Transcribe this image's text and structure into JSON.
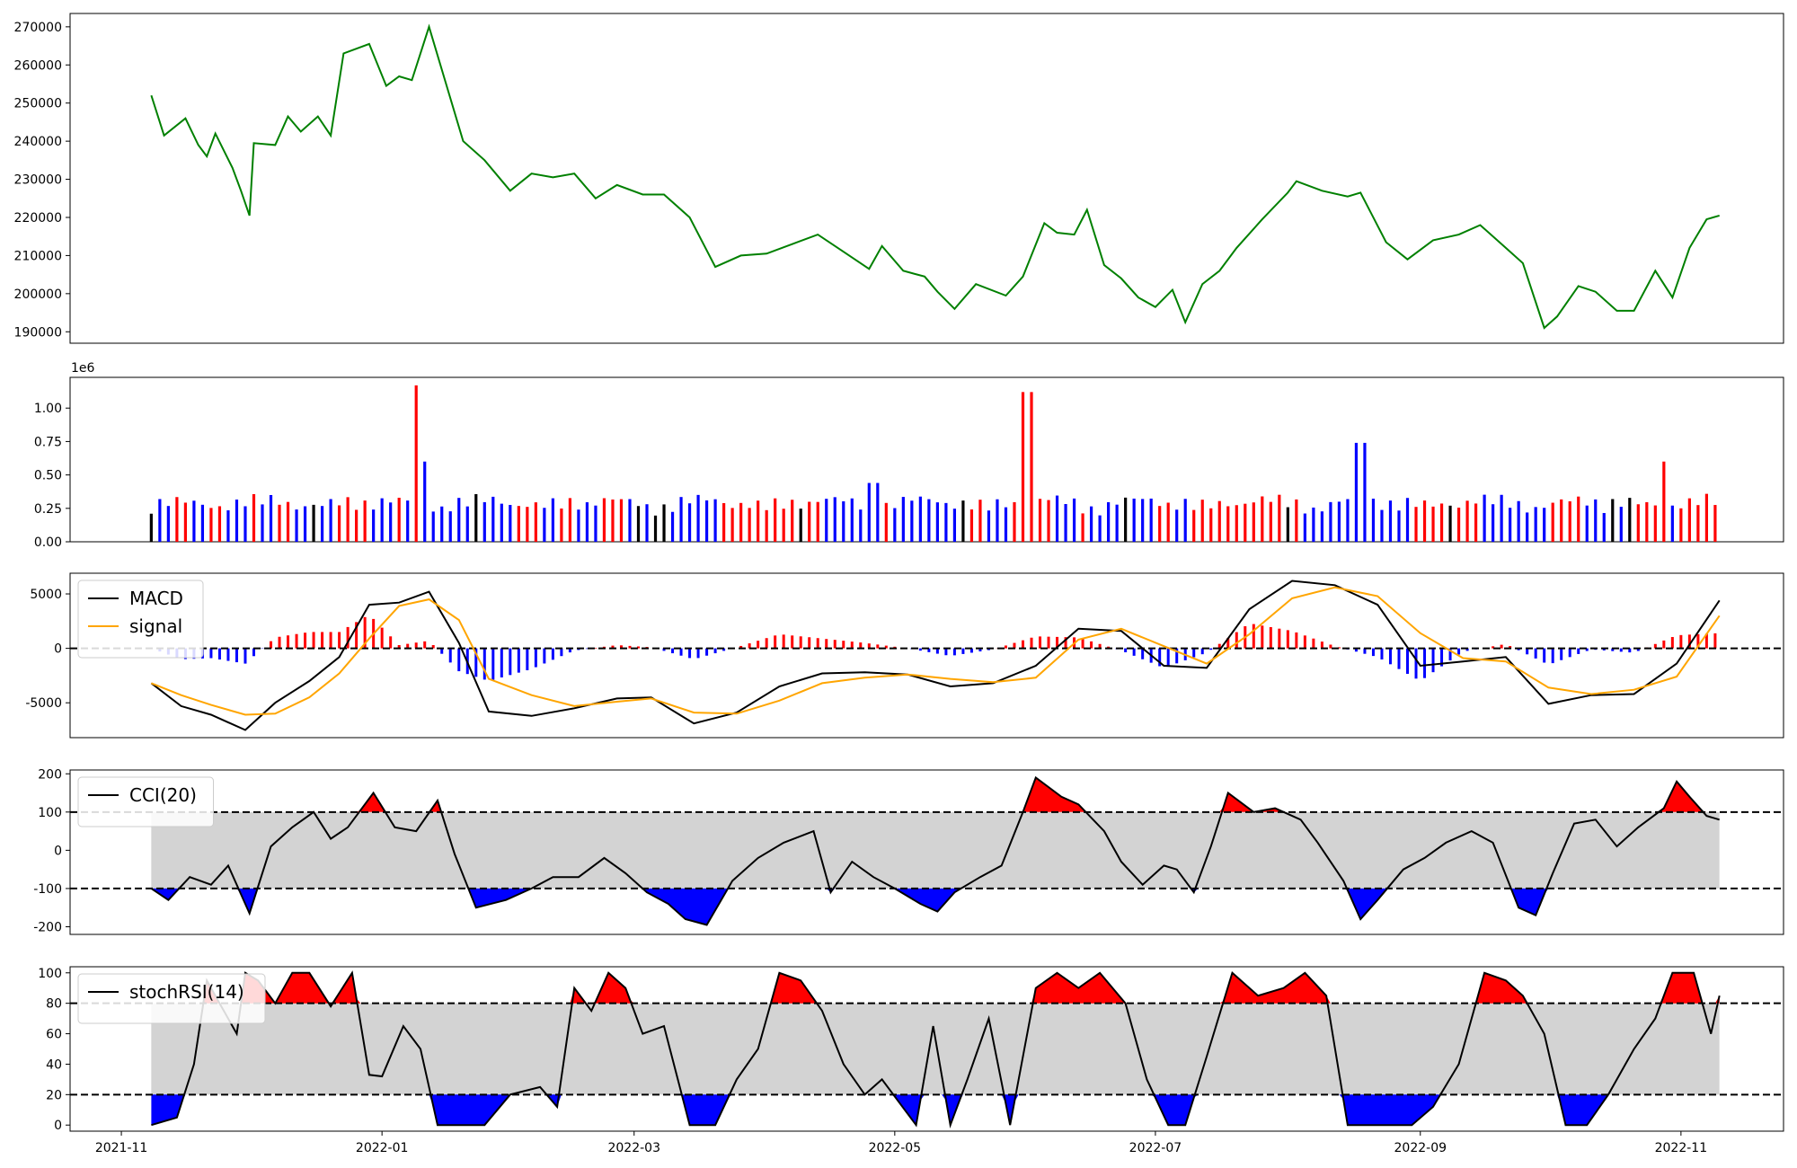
{
  "chart_data": [
    {
      "type": "line",
      "panel": "price",
      "xlim": [
        "2021-10-20",
        "2022-11-25"
      ],
      "ylim": [
        187000,
        273500
      ],
      "yticks": [
        190000,
        200000,
        210000,
        220000,
        230000,
        240000,
        250000,
        260000,
        270000
      ],
      "series": [
        {
          "color": "#008000",
          "x": [
            "2021-11-08",
            "2021-11-11",
            "2021-11-16",
            "2021-11-19",
            "2021-11-21",
            "2021-11-23",
            "2021-11-27",
            "2021-11-29",
            "2021-12-01",
            "2021-12-02",
            "2021-12-07",
            "2021-12-10",
            "2021-12-13",
            "2021-12-17",
            "2021-12-20",
            "2021-12-23",
            "2021-12-29",
            "2022-01-02",
            "2022-01-05",
            "2022-01-08",
            "2022-01-12",
            "2022-01-16",
            "2022-01-20",
            "2022-01-25",
            "2022-01-31",
            "2022-02-05",
            "2022-02-10",
            "2022-02-15",
            "2022-02-20",
            "2022-02-25",
            "2022-03-03",
            "2022-03-08",
            "2022-03-14",
            "2022-03-20",
            "2022-03-26",
            "2022-04-01",
            "2022-04-07",
            "2022-04-13",
            "2022-04-19",
            "2022-04-25",
            "2022-04-28",
            "2022-05-03",
            "2022-05-08",
            "2022-05-11",
            "2022-05-15",
            "2022-05-20",
            "2022-05-27",
            "2022-05-31",
            "2022-06-05",
            "2022-06-08",
            "2022-06-12",
            "2022-06-15",
            "2022-06-19",
            "2022-06-23",
            "2022-06-27",
            "2022-07-01",
            "2022-07-05",
            "2022-07-08",
            "2022-07-12",
            "2022-07-16",
            "2022-07-20",
            "2022-07-26",
            "2022-08-01",
            "2022-08-03",
            "2022-08-09",
            "2022-08-15",
            "2022-08-18",
            "2022-08-24",
            "2022-08-29",
            "2022-09-04",
            "2022-09-10",
            "2022-09-15",
            "2022-09-21",
            "2022-09-25",
            "2022-09-30",
            "2022-10-03",
            "2022-10-08",
            "2022-10-12",
            "2022-10-17",
            "2022-10-21",
            "2022-10-26",
            "2022-10-30",
            "2022-11-03",
            "2022-11-07",
            "2022-11-10"
          ],
          "y": [
            252000,
            241500,
            246000,
            239000,
            236000,
            242000,
            233000,
            227000,
            220500,
            239500,
            239000,
            246500,
            242500,
            246500,
            241500,
            263000,
            265500,
            254500,
            257000,
            256000,
            270000,
            255000,
            240000,
            235000,
            227000,
            231500,
            230500,
            231500,
            225000,
            228500,
            226000,
            226000,
            220000,
            207000,
            210000,
            210500,
            213000,
            215500,
            211000,
            206500,
            212500,
            206000,
            204500,
            200500,
            196000,
            202500,
            199500,
            204500,
            218500,
            216000,
            215500,
            222000,
            207500,
            204000,
            199000,
            196500,
            201000,
            192500,
            202500,
            206000,
            212000,
            219500,
            226500,
            229500,
            227000,
            225500,
            226500,
            213500,
            209000,
            214000,
            215500,
            218000,
            212000,
            208000,
            191000,
            194000,
            202000,
            200500,
            195500,
            195500,
            206000,
            199000,
            212000,
            219500,
            220500
          ]
        }
      ]
    },
    {
      "type": "bar",
      "panel": "volume",
      "scale_label": "1e6",
      "ylim": [
        0,
        1.23
      ],
      "yticks": [
        "0.00",
        "0.25",
        "0.50",
        "0.75",
        "1.00"
      ],
      "spikes": [
        {
          "x": "2022-01-09",
          "value": 1.17,
          "color": "#ff0000"
        },
        {
          "x": "2022-01-11",
          "value": 0.6,
          "color": "#0000ff"
        },
        {
          "x": "2022-04-26",
          "value": 0.44,
          "color": "#0000ff"
        },
        {
          "x": "2022-06-01",
          "value": 1.12,
          "color": "#ff0000"
        },
        {
          "x": "2022-08-18",
          "value": 0.74,
          "color": "#0000ff"
        },
        {
          "x": "2022-10-28",
          "value": 0.6,
          "color": "#ff0000"
        }
      ]
    },
    {
      "type": "line",
      "panel": "macd",
      "ylim": [
        -8200,
        6900
      ],
      "yticks": [
        -5000,
        0,
        5000
      ],
      "series": [
        {
          "name": "MACD",
          "color": "#000000",
          "x": [
            "2021-11-08",
            "2021-11-15",
            "2021-11-22",
            "2021-11-30",
            "2021-12-07",
            "2021-12-15",
            "2021-12-22",
            "2021-12-29",
            "2022-01-05",
            "2022-01-12",
            "2022-01-19",
            "2022-01-26",
            "2022-02-05",
            "2022-02-15",
            "2022-02-25",
            "2022-03-05",
            "2022-03-15",
            "2022-03-25",
            "2022-04-04",
            "2022-04-14",
            "2022-04-24",
            "2022-05-04",
            "2022-05-14",
            "2022-05-24",
            "2022-06-03",
            "2022-06-13",
            "2022-06-23",
            "2022-07-03",
            "2022-07-13",
            "2022-07-23",
            "2022-08-02",
            "2022-08-12",
            "2022-08-22",
            "2022-09-01",
            "2022-09-11",
            "2022-09-21",
            "2022-10-01",
            "2022-10-11",
            "2022-10-21",
            "2022-10-31",
            "2022-11-10"
          ],
          "y": [
            -3200,
            -5300,
            -6100,
            -7500,
            -5000,
            -3000,
            -800,
            4000,
            4200,
            5200,
            500,
            -5800,
            -6200,
            -5500,
            -4600,
            -4500,
            -6900,
            -5900,
            -3500,
            -2300,
            -2200,
            -2400,
            -3500,
            -3200,
            -1600,
            1800,
            1600,
            -1600,
            -1800,
            3600,
            6200,
            5800,
            4000,
            -1600,
            -1200,
            -800,
            -5100,
            -4300,
            -4200,
            -1400,
            4400
          ]
        },
        {
          "name": "signal",
          "color": "#ffa500",
          "x": [
            "2021-11-08",
            "2021-11-15",
            "2021-11-22",
            "2021-11-30",
            "2021-12-07",
            "2021-12-15",
            "2021-12-22",
            "2021-12-29",
            "2022-01-05",
            "2022-01-12",
            "2022-01-19",
            "2022-01-26",
            "2022-02-05",
            "2022-02-15",
            "2022-02-25",
            "2022-03-05",
            "2022-03-15",
            "2022-03-25",
            "2022-04-04",
            "2022-04-14",
            "2022-04-24",
            "2022-05-04",
            "2022-05-14",
            "2022-05-24",
            "2022-06-03",
            "2022-06-13",
            "2022-06-23",
            "2022-07-03",
            "2022-07-13",
            "2022-07-23",
            "2022-08-02",
            "2022-08-12",
            "2022-08-22",
            "2022-09-01",
            "2022-09-11",
            "2022-09-21",
            "2022-10-01",
            "2022-10-11",
            "2022-10-21",
            "2022-10-31",
            "2022-11-10"
          ],
          "y": [
            -3200,
            -4300,
            -5200,
            -6100,
            -6000,
            -4500,
            -2300,
            900,
            3900,
            4500,
            2600,
            -2800,
            -4300,
            -5300,
            -4900,
            -4600,
            -5900,
            -6000,
            -4800,
            -3200,
            -2700,
            -2400,
            -2800,
            -3100,
            -2700,
            800,
            1800,
            200,
            -1400,
            1300,
            4600,
            5600,
            4800,
            1400,
            -900,
            -1200,
            -3600,
            -4200,
            -3800,
            -2600,
            3000
          ]
        }
      ],
      "histogram_colors": {
        "positive": "#ff0000",
        "negative": "#0000ff"
      }
    },
    {
      "type": "line",
      "panel": "cci",
      "ylim": [
        -220,
        210
      ],
      "yticks": [
        -200,
        -100,
        0,
        100,
        200
      ],
      "bands": [
        -100,
        100
      ],
      "series": [
        {
          "name": "CCI(20)",
          "color": "#000000",
          "x": [
            "2021-11-08",
            "2021-11-12",
            "2021-11-17",
            "2021-11-22",
            "2021-11-26",
            "2021-12-01",
            "2021-12-06",
            "2021-12-11",
            "2021-12-16",
            "2021-12-20",
            "2021-12-24",
            "2021-12-30",
            "2022-01-04",
            "2022-01-09",
            "2022-01-14",
            "2022-01-18",
            "2022-01-23",
            "2022-01-30",
            "2022-02-05",
            "2022-02-10",
            "2022-02-16",
            "2022-02-22",
            "2022-02-27",
            "2022-03-04",
            "2022-03-09",
            "2022-03-13",
            "2022-03-18",
            "2022-03-24",
            "2022-03-30",
            "2022-04-05",
            "2022-04-12",
            "2022-04-16",
            "2022-04-21",
            "2022-04-26",
            "2022-05-01",
            "2022-05-07",
            "2022-05-11",
            "2022-05-15",
            "2022-05-21",
            "2022-05-26",
            "2022-05-31",
            "2022-06-03",
            "2022-06-09",
            "2022-06-13",
            "2022-06-19",
            "2022-06-23",
            "2022-06-28",
            "2022-07-03",
            "2022-07-06",
            "2022-07-10",
            "2022-07-14",
            "2022-07-18",
            "2022-07-24",
            "2022-07-29",
            "2022-08-04",
            "2022-08-08",
            "2022-08-14",
            "2022-08-18",
            "2022-08-22",
            "2022-08-28",
            "2022-09-02",
            "2022-09-07",
            "2022-09-13",
            "2022-09-18",
            "2022-09-24",
            "2022-09-28",
            "2022-10-02",
            "2022-10-07",
            "2022-10-12",
            "2022-10-17",
            "2022-10-22",
            "2022-10-28",
            "2022-10-31",
            "2022-11-03",
            "2022-11-07",
            "2022-11-10"
          ],
          "y": [
            -100,
            -130,
            -70,
            -90,
            -40,
            -165,
            10,
            60,
            100,
            30,
            60,
            150,
            60,
            50,
            130,
            -10,
            -150,
            -130,
            -100,
            -70,
            -70,
            -20,
            -60,
            -110,
            -140,
            -180,
            -195,
            -80,
            -20,
            20,
            50,
            -110,
            -30,
            -70,
            -100,
            -140,
            -160,
            -110,
            -70,
            -40,
            100,
            190,
            140,
            120,
            50,
            -30,
            -90,
            -40,
            -50,
            -110,
            10,
            150,
            100,
            110,
            80,
            20,
            -80,
            -180,
            -130,
            -50,
            -20,
            20,
            50,
            20,
            -150,
            -170,
            -60,
            70,
            80,
            10,
            60,
            110,
            180,
            140,
            90,
            80
          ]
        }
      ],
      "fill_colors": {
        "above": "#ff0000",
        "below": "#0000ff",
        "band": "#d3d3d3"
      }
    },
    {
      "type": "line",
      "panel": "stochrsi",
      "ylim": [
        -4,
        104
      ],
      "yticks": [
        0,
        20,
        40,
        60,
        80,
        100
      ],
      "bands": [
        20,
        80
      ],
      "series": [
        {
          "name": "stochRSI(14)",
          "color": "#000000",
          "x": [
            "2021-11-08",
            "2021-11-14",
            "2021-11-18",
            "2021-11-21",
            "2021-11-24",
            "2021-11-28",
            "2021-11-30",
            "2021-12-03",
            "2021-12-07",
            "2021-12-11",
            "2021-12-15",
            "2021-12-20",
            "2021-12-25",
            "2021-12-29",
            "2022-01-01",
            "2022-01-06",
            "2022-01-10",
            "2022-01-14",
            "2022-01-19",
            "2022-01-25",
            "2022-01-31",
            "2022-02-07",
            "2022-02-11",
            "2022-02-15",
            "2022-02-19",
            "2022-02-23",
            "2022-02-27",
            "2022-03-03",
            "2022-03-08",
            "2022-03-14",
            "2022-03-20",
            "2022-03-25",
            "2022-03-30",
            "2022-04-04",
            "2022-04-09",
            "2022-04-14",
            "2022-04-19",
            "2022-04-24",
            "2022-04-28",
            "2022-05-02",
            "2022-05-06",
            "2022-05-10",
            "2022-05-14",
            "2022-05-18",
            "2022-05-23",
            "2022-05-28",
            "2022-06-03",
            "2022-06-08",
            "2022-06-13",
            "2022-06-18",
            "2022-06-24",
            "2022-06-29",
            "2022-07-04",
            "2022-07-08",
            "2022-07-13",
            "2022-07-19",
            "2022-07-25",
            "2022-07-31",
            "2022-08-05",
            "2022-08-10",
            "2022-08-15",
            "2022-08-20",
            "2022-08-25",
            "2022-08-30",
            "2022-09-04",
            "2022-09-10",
            "2022-09-16",
            "2022-09-21",
            "2022-09-25",
            "2022-09-30",
            "2022-10-05",
            "2022-10-10",
            "2022-10-15",
            "2022-10-21",
            "2022-10-26",
            "2022-10-30",
            "2022-11-04",
            "2022-11-08",
            "2022-11-10"
          ],
          "y": [
            0,
            5,
            40,
            95,
            80,
            60,
            100,
            95,
            80,
            100,
            100,
            78,
            100,
            33,
            32,
            65,
            50,
            0,
            0,
            0,
            20,
            25,
            12,
            90,
            75,
            100,
            90,
            60,
            65,
            0,
            0,
            30,
            50,
            100,
            95,
            75,
            40,
            20,
            30,
            15,
            0,
            65,
            0,
            30,
            70,
            0,
            90,
            100,
            90,
            100,
            80,
            30,
            0,
            0,
            45,
            100,
            85,
            90,
            100,
            85,
            0,
            0,
            0,
            0,
            12,
            40,
            100,
            95,
            85,
            60,
            0,
            0,
            20,
            50,
            70,
            100,
            100,
            60,
            85
          ]
        }
      ],
      "fill_colors": {
        "above": "#ff0000",
        "below": "#0000ff",
        "band": "#d3d3d3"
      }
    }
  ],
  "x_axis": {
    "ticks": [
      "2021-11",
      "2022-01",
      "2022-03",
      "2022-05",
      "2022-07",
      "2022-09",
      "2022-11"
    ],
    "tick_dates": [
      "2021-11-01",
      "2022-01-01",
      "2022-03-01",
      "2022-05-01",
      "2022-07-01",
      "2022-09-01",
      "2022-11-01"
    ]
  }
}
